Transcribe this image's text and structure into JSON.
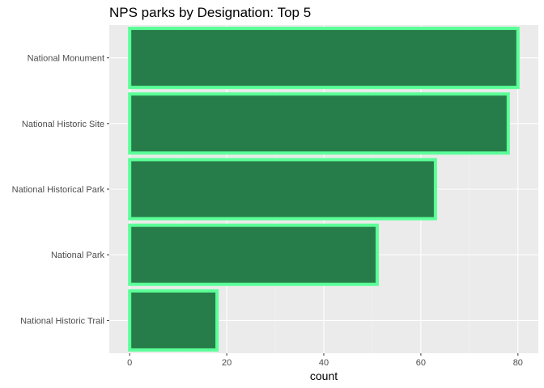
{
  "chart_data": {
    "type": "bar",
    "orientation": "horizontal",
    "title": "NPS parks by Designation: Top 5",
    "xlabel": "count",
    "ylabel": "",
    "categories": [
      "National Monument",
      "National Historic Site",
      "National Historical Park",
      "National Park",
      "National Historic Trail"
    ],
    "values": [
      80,
      78,
      63,
      51,
      18
    ],
    "x_ticks": [
      0,
      20,
      40,
      60,
      80
    ],
    "x_tick_labels": [
      "0",
      "20",
      "40",
      "60",
      "80"
    ],
    "xlim": [
      -4.2,
      84.2
    ],
    "grid": true,
    "legend": "none",
    "colors": {
      "bar_fill": "#277D49",
      "bar_outline": "#5BFF98",
      "panel_background": "#EBEBEB",
      "grid_major": "#FFFFFF",
      "grid_minor": "#F4F4F4"
    }
  }
}
